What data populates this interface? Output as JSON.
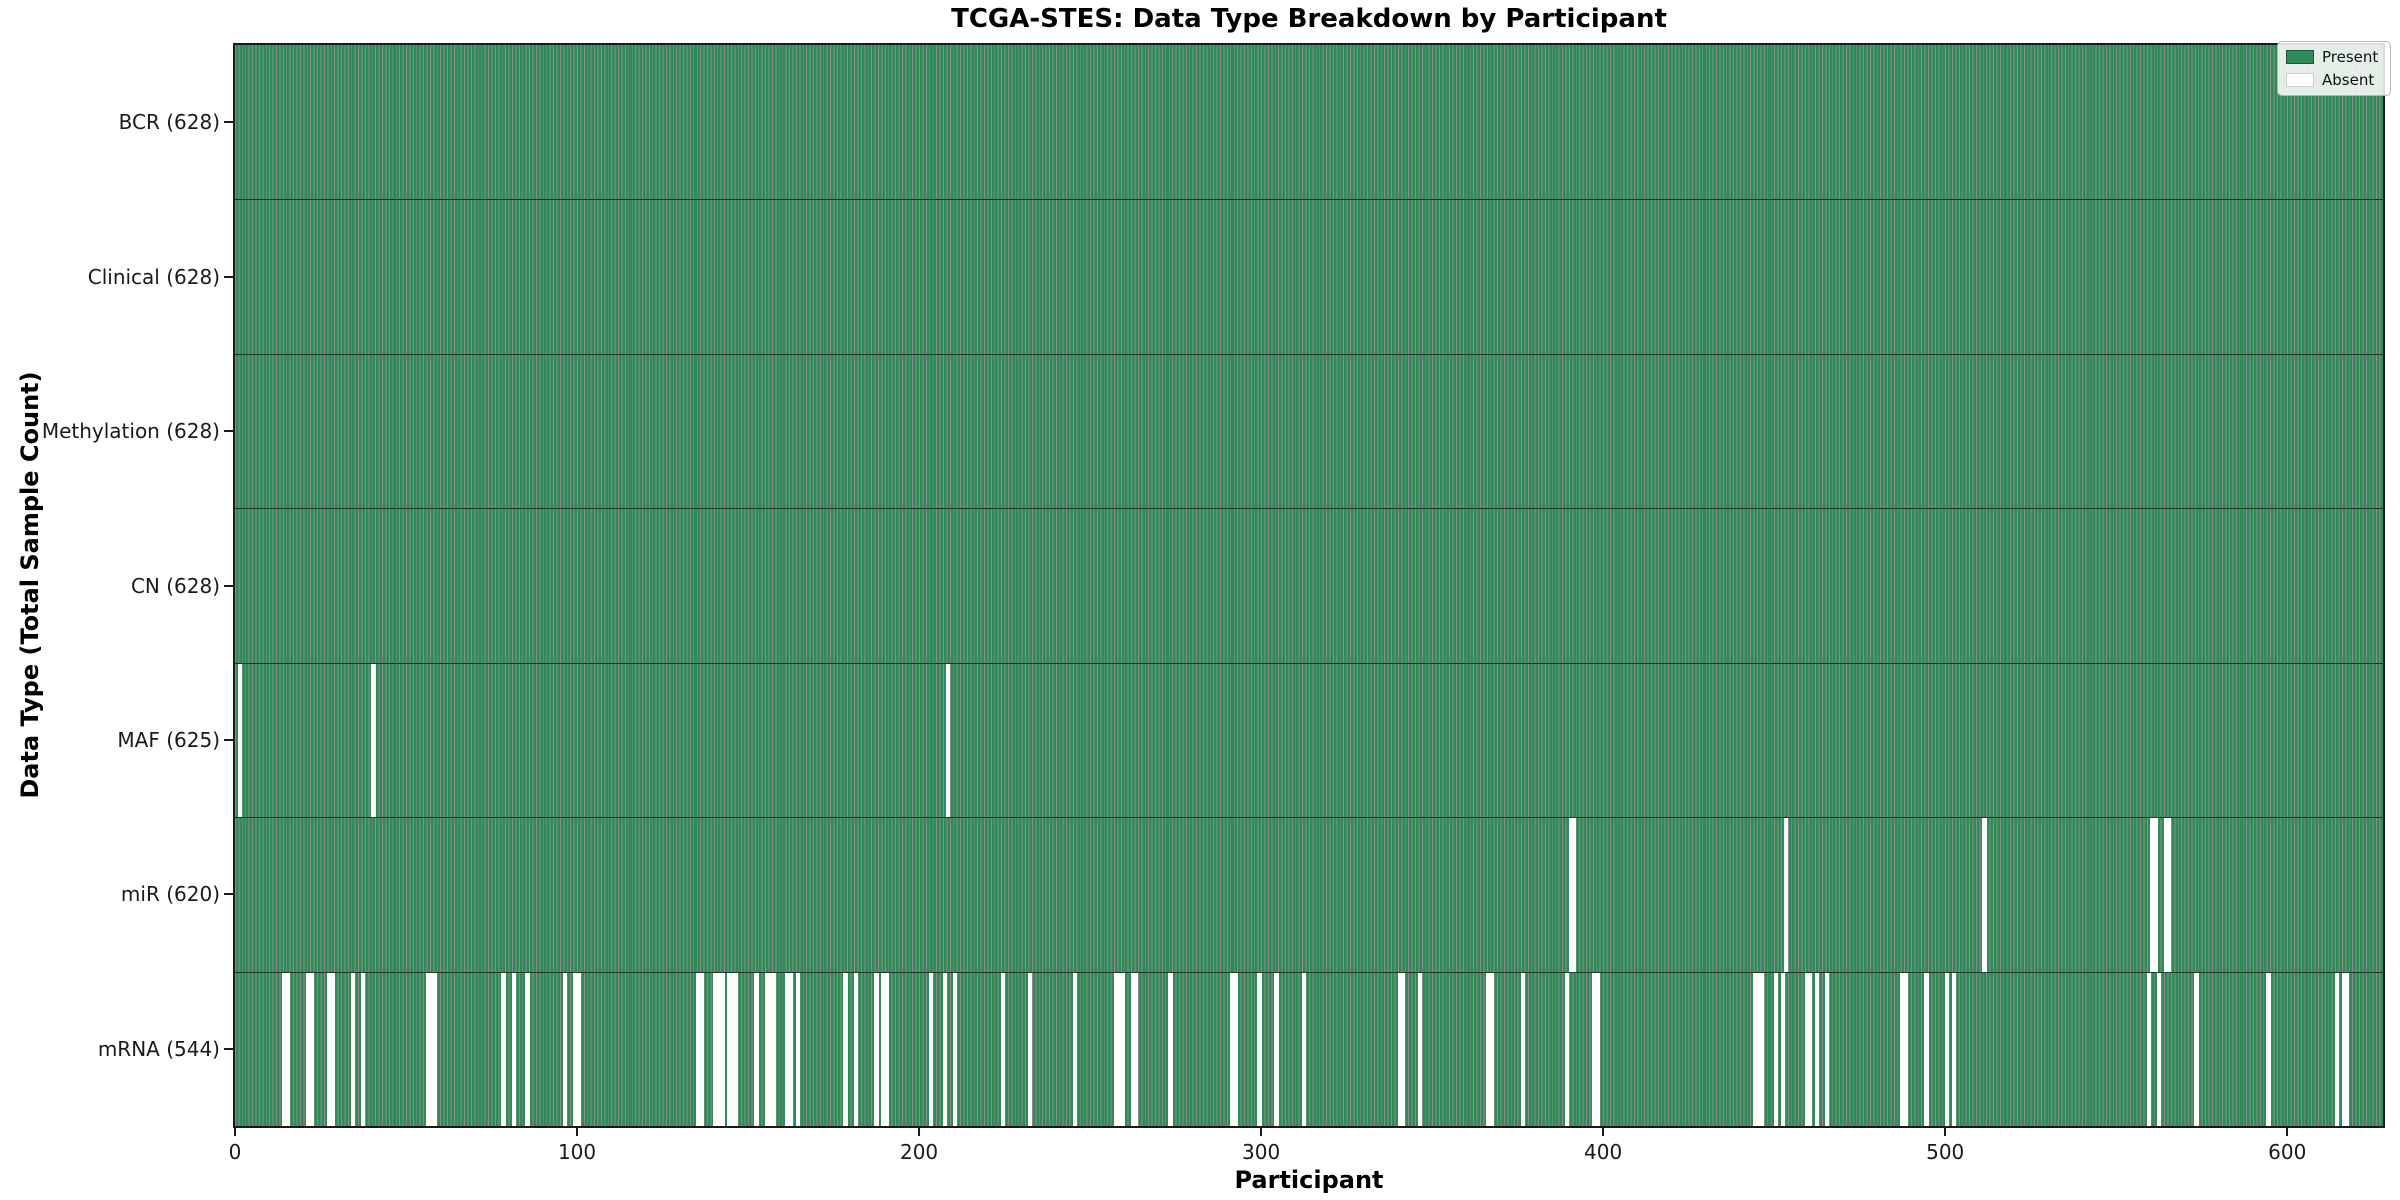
{
  "chart_data": {
    "type": "heatmap",
    "title": "TCGA-STES: Data Type Breakdown by Participant",
    "xlabel": "Participant",
    "ylabel": "Data Type (Total Sample Count)",
    "n_participants": 628,
    "x_ticks": [
      0,
      100,
      200,
      300,
      400,
      500,
      600
    ],
    "xlim": [
      0,
      628
    ],
    "grid": false,
    "legend_position": "upper right",
    "legend": [
      {
        "label": "Present",
        "color": "#2e8b57"
      },
      {
        "label": "Absent",
        "color": "#ffffff"
      }
    ],
    "colors": {
      "present": "#2e8b57",
      "bar_edge": "rgba(0,0,0,0.45)",
      "absent": "#ffffff",
      "separator": "rgba(0,0,0,0.55)"
    },
    "rows": [
      {
        "label": "BCR (628)",
        "name": "BCR",
        "present_count": 628,
        "absent_participants": []
      },
      {
        "label": "Clinical (628)",
        "name": "Clinical",
        "present_count": 628,
        "absent_participants": []
      },
      {
        "label": "Methylation (628)",
        "name": "Methylation",
        "present_count": 628,
        "absent_participants": []
      },
      {
        "label": "CN (628)",
        "name": "CN",
        "present_count": 628,
        "absent_participants": []
      },
      {
        "label": "MAF (625)",
        "name": "MAF",
        "present_count": 625,
        "absent_participants": [
          1,
          40,
          208
        ]
      },
      {
        "label": "miR (620)",
        "name": "miR",
        "present_count": 620,
        "absent_participants": [
          390,
          391,
          453,
          511,
          560,
          561,
          564,
          565
        ]
      },
      {
        "label": "mRNA (544)",
        "name": "mRNA",
        "present_count": 544,
        "absent_participants": [
          14,
          15,
          21,
          22,
          27,
          28,
          34,
          37,
          56,
          57,
          58,
          78,
          81,
          85,
          96,
          99,
          100,
          135,
          136,
          140,
          141,
          142,
          144,
          145,
          146,
          152,
          155,
          156,
          157,
          161,
          162,
          164,
          178,
          181,
          187,
          189,
          190,
          203,
          207,
          210,
          224,
          232,
          245,
          257,
          258,
          259,
          262,
          263,
          273,
          291,
          292,
          299,
          304,
          312,
          340,
          341,
          346,
          366,
          367,
          376,
          389,
          397,
          398,
          444,
          445,
          446,
          450,
          452,
          459,
          460,
          462,
          465,
          487,
          488,
          494,
          500,
          502,
          559,
          562,
          573,
          594,
          614,
          616,
          617
        ]
      }
    ]
  }
}
